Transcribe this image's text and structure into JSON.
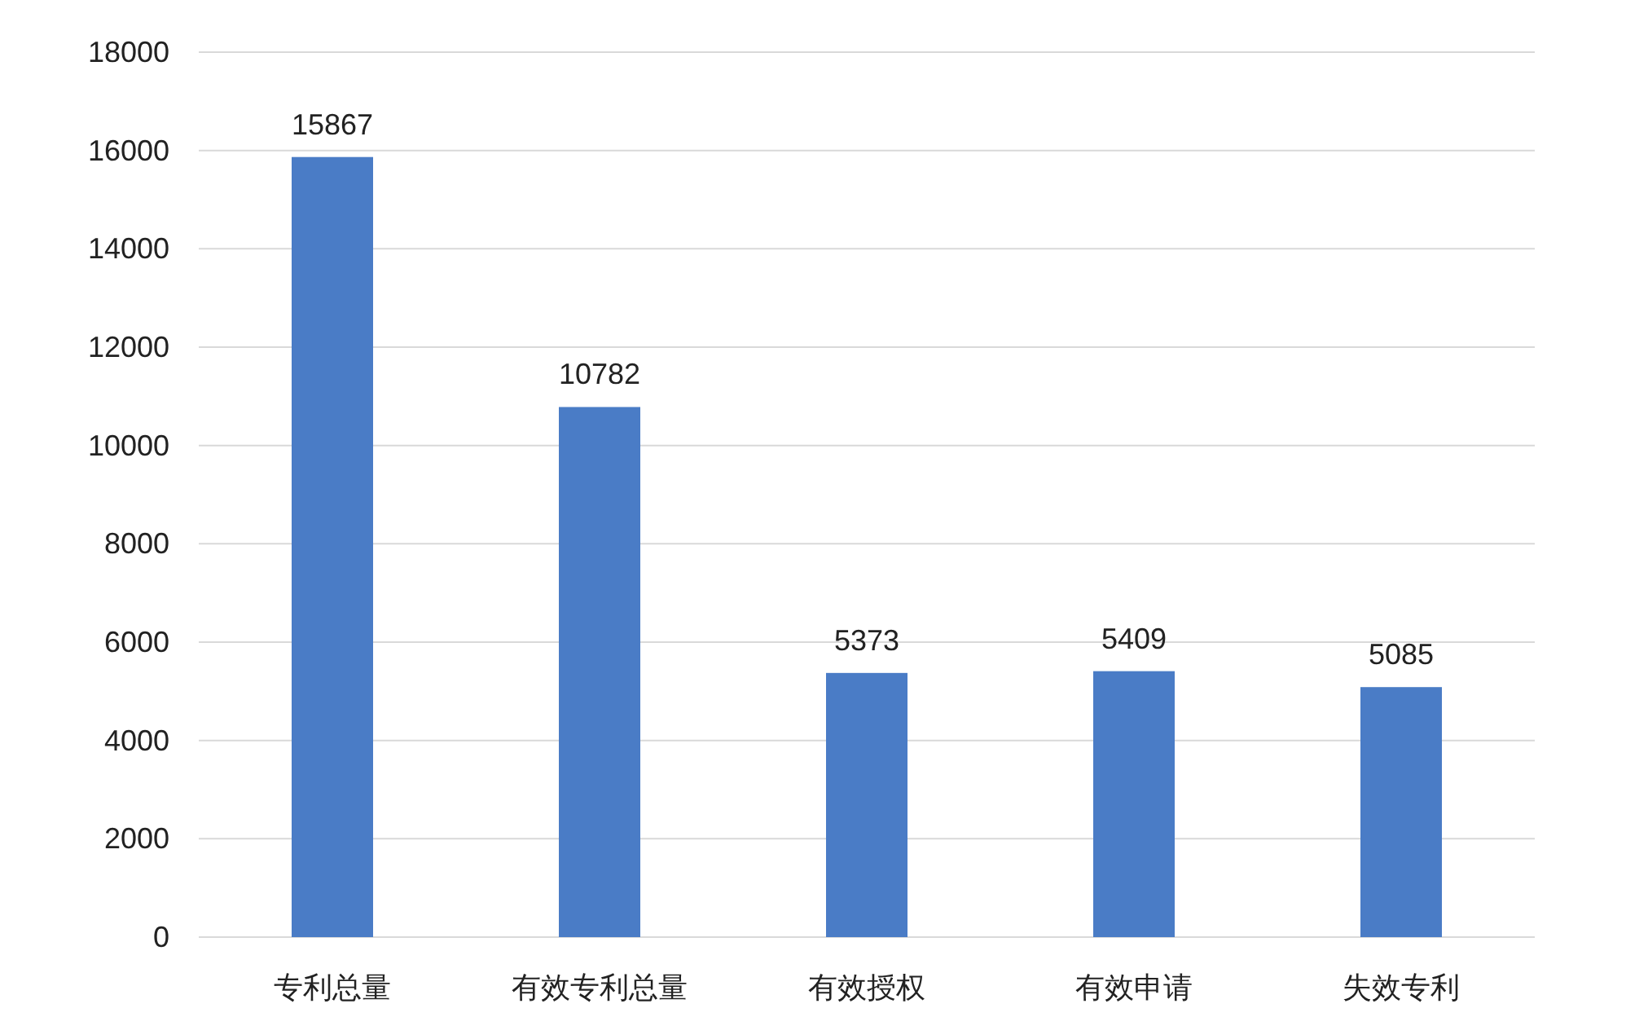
{
  "chart_data": {
    "type": "bar",
    "categories": [
      "专利总量",
      "有效专利总量",
      "有效授权",
      "有效申请",
      "失效专利"
    ],
    "values": [
      15867,
      10782,
      5373,
      5409,
      5085
    ],
    "color": "#4a7cc6",
    "ylim": [
      0,
      18000
    ],
    "yticks": [
      0,
      2000,
      4000,
      6000,
      8000,
      10000,
      12000,
      14000,
      16000,
      18000
    ],
    "grid": "y",
    "data_labels": true
  }
}
